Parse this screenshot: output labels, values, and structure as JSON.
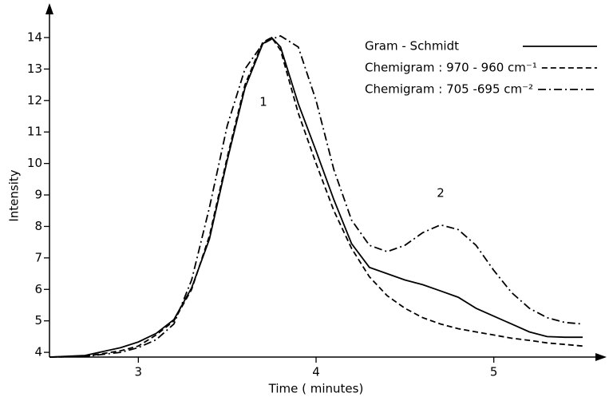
{
  "chart_data": {
    "type": "line",
    "x_label": "Time ( minutes)",
    "y_label": "Intensity",
    "x": [
      2.5,
      2.7,
      2.9,
      3.0,
      3.1,
      3.2,
      3.3,
      3.4,
      3.5,
      3.6,
      3.7,
      3.75,
      3.8,
      3.9,
      4.0,
      4.1,
      4.2,
      4.3,
      4.4,
      4.5,
      4.6,
      4.7,
      4.8,
      4.9,
      5.0,
      5.1,
      5.2,
      5.3,
      5.4,
      5.5
    ],
    "series": [
      {
        "name": "Gram - Schmidt",
        "color": "#000000",
        "dash": "solid",
        "values": [
          3.85,
          3.9,
          4.15,
          4.33,
          4.6,
          5.04,
          6.05,
          7.6,
          10.1,
          12.4,
          13.8,
          14.0,
          13.7,
          11.9,
          10.4,
          8.85,
          7.45,
          6.7,
          6.5,
          6.3,
          6.15,
          5.95,
          5.75,
          5.4,
          5.15,
          4.9,
          4.65,
          4.5,
          4.48,
          4.48
        ]
      },
      {
        "name": "Chemigram : 970 - 960 cm⁻¹",
        "color": "#000000",
        "dash": "dashed",
        "values": [
          3.85,
          3.87,
          4.05,
          4.2,
          4.55,
          5.0,
          6.0,
          7.7,
          10.2,
          12.5,
          13.85,
          14.0,
          13.6,
          11.6,
          10.0,
          8.5,
          7.3,
          6.4,
          5.8,
          5.4,
          5.1,
          4.9,
          4.75,
          4.65,
          4.55,
          4.45,
          4.38,
          4.3,
          4.25,
          4.2
        ]
      },
      {
        "name": "Chemigram : 705 -695 cm⁻²",
        "color": "#000000",
        "dash": "dashdot",
        "values": [
          3.85,
          3.87,
          4.0,
          4.15,
          4.4,
          4.9,
          6.3,
          8.6,
          11.2,
          13.0,
          13.8,
          13.95,
          14.05,
          13.7,
          12.0,
          9.8,
          8.2,
          7.4,
          7.2,
          7.4,
          7.8,
          8.05,
          7.9,
          7.4,
          6.6,
          5.9,
          5.4,
          5.1,
          4.95,
          4.9
        ]
      }
    ],
    "annotations": [
      "1",
      "2"
    ],
    "xlim": [
      2.5,
      5.57
    ],
    "xticks": [
      3,
      4,
      5
    ],
    "ylim": [
      3.85,
      15
    ],
    "yticks": [
      4,
      5,
      6,
      7,
      8,
      9,
      10,
      11,
      12,
      13,
      14
    ],
    "grid": false,
    "legend": "top-right"
  }
}
